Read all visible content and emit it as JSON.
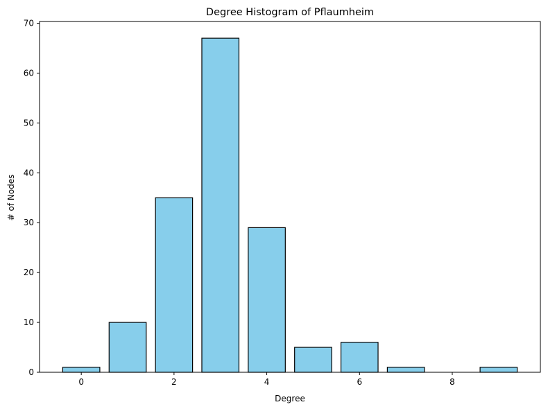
{
  "chart_data": {
    "type": "bar",
    "title": "Degree Histogram of Pflaumheim",
    "xlabel": "Degree",
    "ylabel": "# of Nodes",
    "x": [
      0,
      1,
      2,
      3,
      4,
      5,
      6,
      7,
      9
    ],
    "values": [
      1,
      10,
      35,
      67,
      29,
      5,
      6,
      1,
      1
    ],
    "xlim": [
      -0.9,
      9.9
    ],
    "ylim": [
      0,
      70.35
    ],
    "xticks": [
      0,
      2,
      4,
      6,
      8
    ],
    "yticks": [
      0,
      10,
      20,
      30,
      40,
      50,
      60,
      70
    ],
    "bar_color": "#87CEEB",
    "edge_color": "#000000",
    "grid": false
  }
}
